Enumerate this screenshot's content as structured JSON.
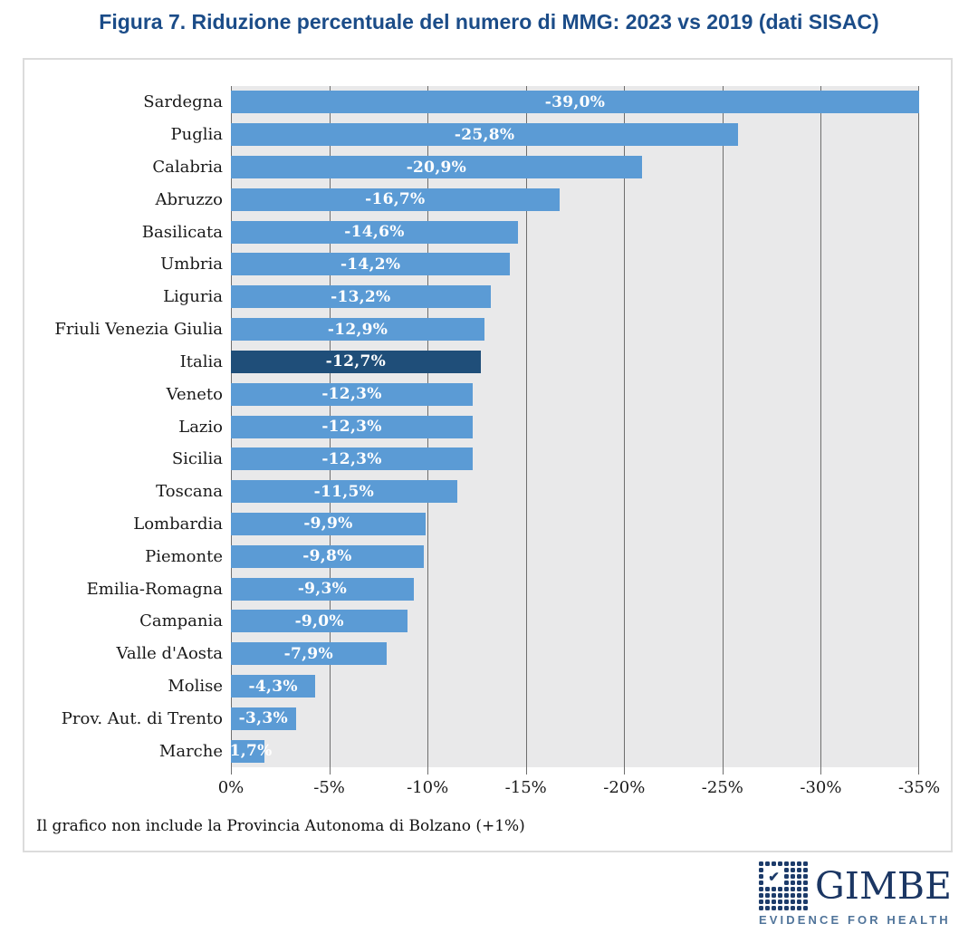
{
  "title": "Figura 7. Riduzione percentuale del numero di MMG: 2023 vs 2019 (dati SISAC)",
  "footnote": "Il grafico non include la Provincia Autonoma di Bolzano (+1%)",
  "logo": {
    "brand": "GIMBE",
    "tagline": "EVIDENCE FOR HEALTH",
    "check_icon": "✔"
  },
  "chart_data": {
    "type": "bar",
    "orientation": "horizontal",
    "title": "Figura 7. Riduzione percentuale del numero di MMG: 2023 vs 2019 (dati SISAC)",
    "categories": [
      "Sardegna",
      "Puglia",
      "Calabria",
      "Abruzzo",
      "Basilicata",
      "Umbria",
      "Liguria",
      "Friuli Venezia Giulia",
      "Italia",
      "Veneto",
      "Lazio",
      "Sicilia",
      "Toscana",
      "Lombardia",
      "Piemonte",
      "Emilia-Romagna",
      "Campania",
      "Valle d'Aosta",
      "Molise",
      "Prov. Aut. di Trento",
      "Marche"
    ],
    "values": [
      -39.0,
      -25.8,
      -20.9,
      -16.7,
      -14.6,
      -14.2,
      -13.2,
      -12.9,
      -12.7,
      -12.3,
      -12.3,
      -12.3,
      -11.5,
      -9.9,
      -9.8,
      -9.3,
      -9.0,
      -7.9,
      -4.3,
      -3.3,
      -1.7
    ],
    "data_labels": [
      "-39,0%",
      "-25,8%",
      "-20,9%",
      "-16,7%",
      "-14,6%",
      "-14,2%",
      "-13,2%",
      "-12,9%",
      "-12,7%",
      "-12,3%",
      "-12,3%",
      "-12,3%",
      "-11,5%",
      "-9,9%",
      "-9,8%",
      "-9,3%",
      "-9,0%",
      "-7,9%",
      "-4,3%",
      "-3,3%",
      "-1,7%"
    ],
    "highlight_category": "Italia",
    "x_tick_labels": [
      "0%",
      "-5%",
      "-10%",
      "-15%",
      "-20%",
      "-25%",
      "-30%",
      "-35%"
    ],
    "x_range": [
      0,
      -35
    ],
    "scale_max": 35,
    "grid": true,
    "legend": "none",
    "bar_color": "#5b9bd5",
    "highlight_color": "#1f4e79",
    "plot_bg": "#e9e9ea",
    "gridline_color": "#6e6e6e",
    "note": "Sardegna bar (-39,0%) is clipped at the -35% axis limit"
  }
}
